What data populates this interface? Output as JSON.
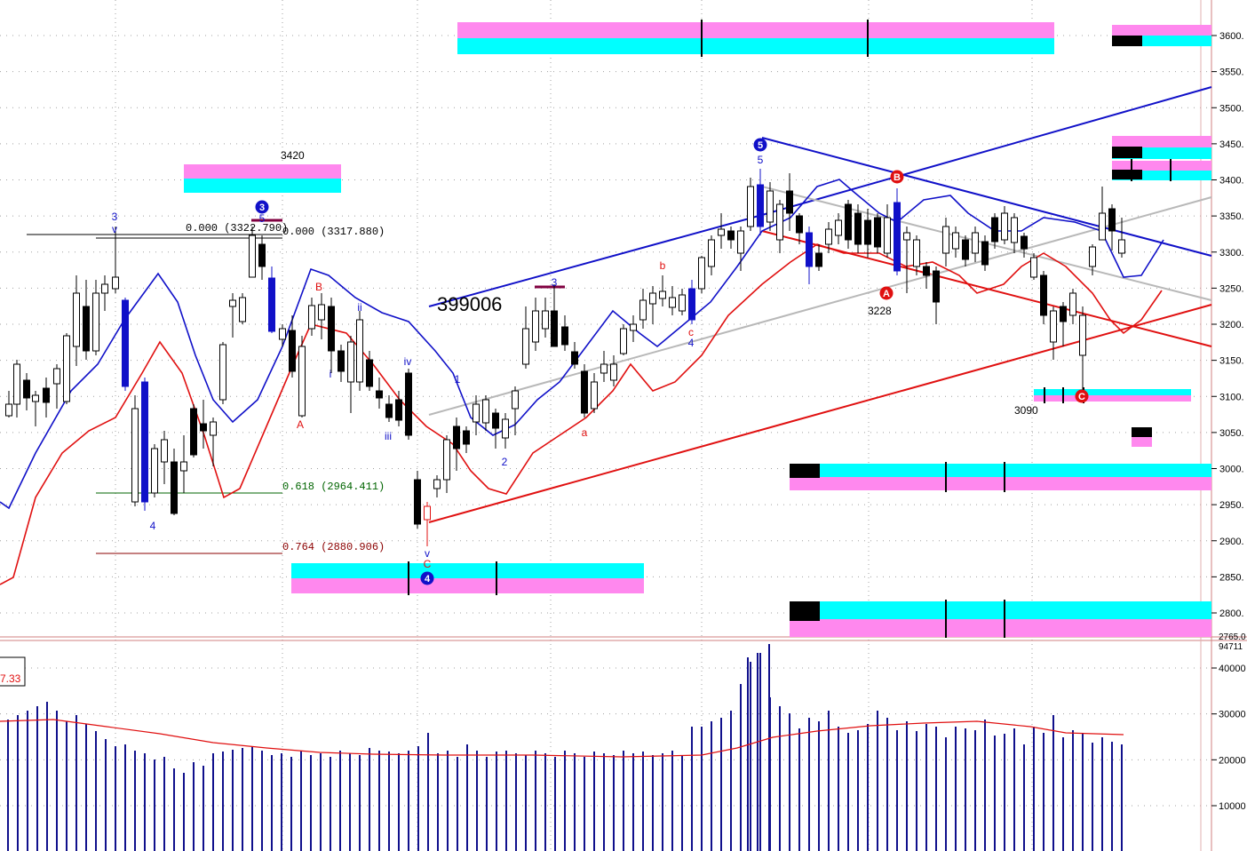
{
  "chart_data": {
    "type": "candlestick",
    "price_axis": {
      "ticks": [
        "3600.",
        "3550.",
        "3500.",
        "3450.",
        "3400.",
        "3350.",
        "3300.",
        "3250.",
        "3200.",
        "3150.",
        "3100.",
        "3050.",
        "3000.",
        "2950.",
        "2900.",
        "2850.",
        "2800."
      ],
      "cutoff_label": "2765.0"
    },
    "volume_axis": {
      "ticks": [
        "40000",
        "30000",
        "20000",
        "10000"
      ],
      "cutoff_label": "94711"
    },
    "price_annotations": [
      {
        "text": "3420"
      },
      {
        "text": "3228"
      },
      {
        "text": "3090"
      },
      {
        "text": "399006"
      }
    ],
    "fib_labels": [
      {
        "text": "0.000 (3322.790)",
        "color": "#000000"
      },
      {
        "text": "0.000 (3317.880)",
        "color": "#000000"
      },
      {
        "text": "0.618 (2964.411)",
        "color": "#006400"
      },
      {
        "text": "0.764 (2880.906)",
        "color": "#8b0000"
      }
    ],
    "wave_labels_blue": [
      {
        "text": "3"
      },
      {
        "text": "v"
      },
      {
        "text": "4"
      },
      {
        "text": "5"
      },
      {
        "text": "ii"
      },
      {
        "text": "i"
      },
      {
        "text": "iv"
      },
      {
        "text": "iii"
      },
      {
        "text": "1"
      },
      {
        "text": "2"
      },
      {
        "text": "3"
      },
      {
        "text": "4"
      },
      {
        "text": "5"
      },
      {
        "text": "v"
      }
    ],
    "wave_labels_red": [
      {
        "text": "B"
      },
      {
        "text": "A"
      },
      {
        "text": "C"
      },
      {
        "text": "a"
      },
      {
        "text": "b"
      },
      {
        "text": "c"
      }
    ],
    "circled_labels": [
      {
        "text": "3",
        "color": "#1010c8"
      },
      {
        "text": "4",
        "color": "#1010c8"
      },
      {
        "text": "5",
        "color": "#1010c8"
      },
      {
        "text": "A",
        "color": "#e01010"
      },
      {
        "text": "B",
        "color": "#e01010"
      },
      {
        "text": "C",
        "color": "#e01010"
      }
    ],
    "indicator_box": {
      "line1": "",
      "line2": "7.33"
    },
    "volume_ma_note": "red moving average over volume bars",
    "colors": {
      "up_candle": "#ffffff",
      "down_candle": "#000000",
      "blue": "#1010c8",
      "red": "#e01010",
      "magenta": "#ff88ee",
      "cyan": "#00ffff",
      "grid": "#a0a0a0",
      "volume": "#10108c"
    }
  }
}
